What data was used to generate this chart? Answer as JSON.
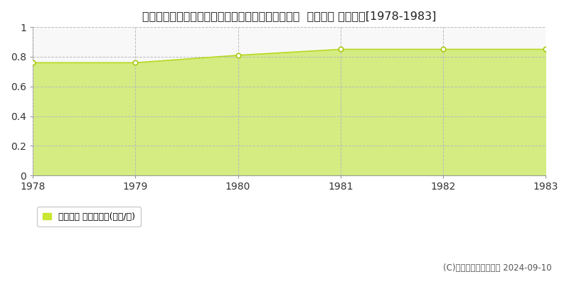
{
  "title": "埼玉県入間郡毛呂山町大字箕和田字大満山３３２番  地価公示 地価推移[1978-1983]",
  "years": [
    1978,
    1979,
    1980,
    1981,
    1982,
    1983
  ],
  "values": [
    0.76,
    0.76,
    0.81,
    0.85,
    0.85,
    0.85
  ],
  "ylim": [
    0,
    1.0
  ],
  "yticks": [
    0,
    0.2,
    0.4,
    0.6,
    0.8,
    1.0
  ],
  "line_color": "#b8d820",
  "fill_color": "#d4ec82",
  "marker_facecolor": "#ffffff",
  "marker_edgecolor": "#a8c810",
  "grid_color": "#bbbbbb",
  "bg_color": "#ffffff",
  "plot_bg_color": "#f8f8f8",
  "legend_label": "地価公示 平均坪単価(万円/坪)",
  "legend_marker_color": "#c8e632",
  "copyright_text": "(C)土地価格ドットコム 2024-09-10",
  "title_fontsize": 11.5,
  "tick_fontsize": 10,
  "legend_fontsize": 9,
  "copyright_fontsize": 8.5
}
